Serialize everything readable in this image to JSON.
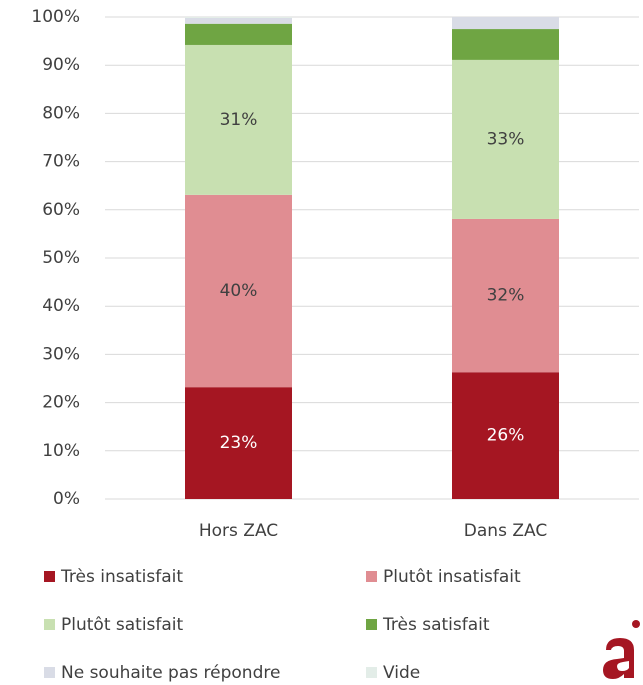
{
  "chart_data": {
    "type": "stacked-bar",
    "categories": [
      "Hors ZAC",
      "Dans ZAC"
    ],
    "series": [
      {
        "name": "Très insatisfait",
        "color": "#a51622",
        "values": [
          23.2,
          26.3
        ],
        "value_labels": [
          "23%",
          "26%"
        ]
      },
      {
        "name": "Plutôt insatisfait",
        "color": "#e08d92",
        "values": [
          39.9,
          31.8
        ],
        "value_labels": [
          "40%",
          "32%"
        ]
      },
      {
        "name": "Plutôt satisfait",
        "color": "#c8e0b1",
        "values": [
          31.1,
          33.0
        ],
        "value_labels": [
          "31%",
          "33%"
        ]
      },
      {
        "name": "Très satisfait",
        "color": "#6fa543",
        "values": [
          4.4,
          6.4
        ]
      },
      {
        "name": "Ne souhaite pas répondre",
        "color": "#d9dce6",
        "values": [
          1.2,
          2.5
        ]
      },
      {
        "name": "Vide",
        "color": "#e3ede8",
        "values": [
          0.2,
          0
        ]
      }
    ],
    "ylim": [
      0,
      100
    ],
    "yticks": [
      {
        "value": 0,
        "label": "0%"
      },
      {
        "value": 10,
        "label": "10%"
      },
      {
        "value": 20,
        "label": "20%"
      },
      {
        "value": 30,
        "label": "30%"
      },
      {
        "value": 40,
        "label": "40%"
      },
      {
        "value": 50,
        "label": "50%"
      },
      {
        "value": 60,
        "label": "60%"
      },
      {
        "value": 70,
        "label": "70%"
      },
      {
        "value": 80,
        "label": "80%"
      },
      {
        "value": 90,
        "label": "90%"
      },
      {
        "value": 100,
        "label": "100%"
      }
    ],
    "grid": true
  }
}
